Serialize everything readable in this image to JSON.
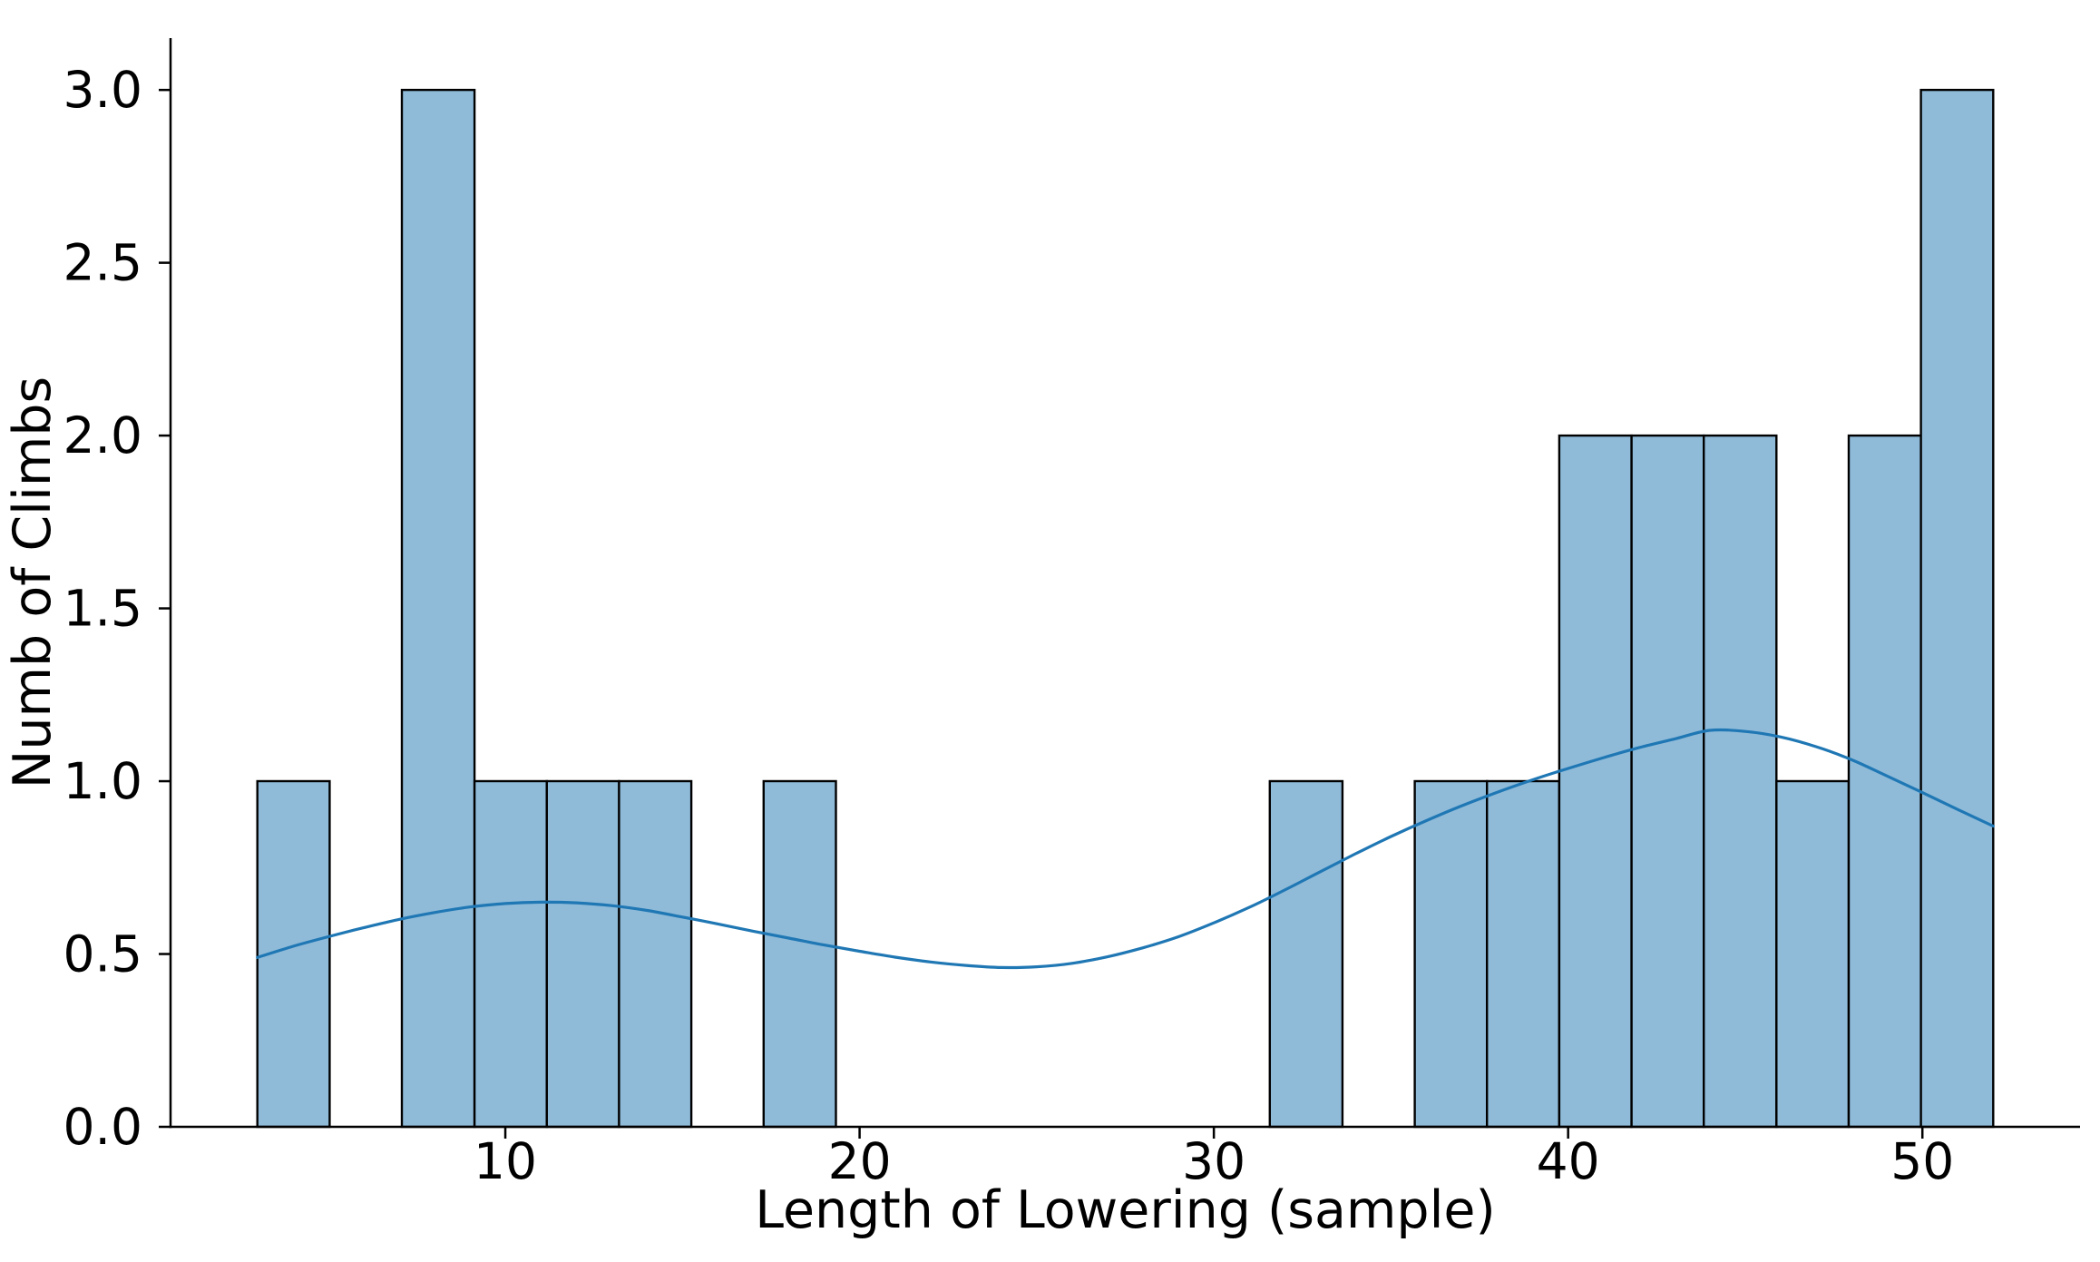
{
  "figure": {
    "background": "#ffffff"
  },
  "chart_data": {
    "type": "bar",
    "subtype": "histogram-with-kde",
    "title": "",
    "xlabel": "Length of Lowering (sample)",
    "ylabel": "Numb of Climbs",
    "xlim": [
      0.55,
      54.45
    ],
    "ylim": [
      0,
      3.15
    ],
    "grid": false,
    "legend": null,
    "xticks": {
      "values": [
        10,
        20,
        30,
        40,
        50
      ],
      "labels": [
        "10",
        "20",
        "30",
        "40",
        "50"
      ]
    },
    "yticks": {
      "values": [
        0,
        0.5,
        1,
        1.5,
        2,
        2.5,
        3
      ],
      "labels": [
        "0.0",
        "0.5",
        "1.0",
        "1.5",
        "2.0",
        "2.5",
        "3.0"
      ]
    },
    "histogram": {
      "bin_start": 3.0,
      "bin_end": 52.0,
      "bin_count": 24,
      "bin_width": 2.0417,
      "bin_edges": [
        3.0,
        5.04,
        7.08,
        9.13,
        11.17,
        13.21,
        15.25,
        17.29,
        19.33,
        21.38,
        23.42,
        25.46,
        27.5,
        29.54,
        31.58,
        33.63,
        35.67,
        37.71,
        39.75,
        41.79,
        43.83,
        45.88,
        47.92,
        49.96,
        52.0
      ],
      "counts": [
        1,
        0,
        3,
        1,
        1,
        1,
        0,
        1,
        0,
        0,
        0,
        0,
        0,
        0,
        1,
        0,
        1,
        1,
        2,
        2,
        2,
        1,
        2,
        3
      ],
      "total_observations": 23
    },
    "kde": {
      "x": [
        3,
        4,
        5,
        6,
        7,
        8,
        9,
        10,
        11,
        12,
        13,
        14,
        15,
        16,
        17,
        18,
        19,
        20,
        21,
        22,
        23,
        24,
        25,
        26,
        27,
        28,
        29,
        30,
        31,
        32,
        33,
        34,
        35,
        36,
        37,
        38,
        39,
        40,
        41,
        42,
        43,
        44,
        45,
        46,
        47,
        48,
        49,
        50,
        51,
        52
      ],
      "y": [
        0.49,
        0.522,
        0.55,
        0.576,
        0.6,
        0.62,
        0.636,
        0.646,
        0.65,
        0.648,
        0.64,
        0.626,
        0.607,
        0.587,
        0.566,
        0.546,
        0.526,
        0.508,
        0.491,
        0.477,
        0.467,
        0.461,
        0.463,
        0.473,
        0.492,
        0.518,
        0.55,
        0.59,
        0.635,
        0.685,
        0.738,
        0.79,
        0.84,
        0.886,
        0.929,
        0.968,
        1.004,
        1.037,
        1.068,
        1.097,
        1.122,
        1.147,
        1.144,
        1.128,
        1.1,
        1.062,
        1.015,
        0.967,
        0.918,
        0.87
      ]
    },
    "colors": {
      "bar_fill": "#8FBBD9",
      "bar_edge": "#000000",
      "kde_line": "#1F77B4",
      "axis": "#000000",
      "text": "#000000"
    }
  }
}
